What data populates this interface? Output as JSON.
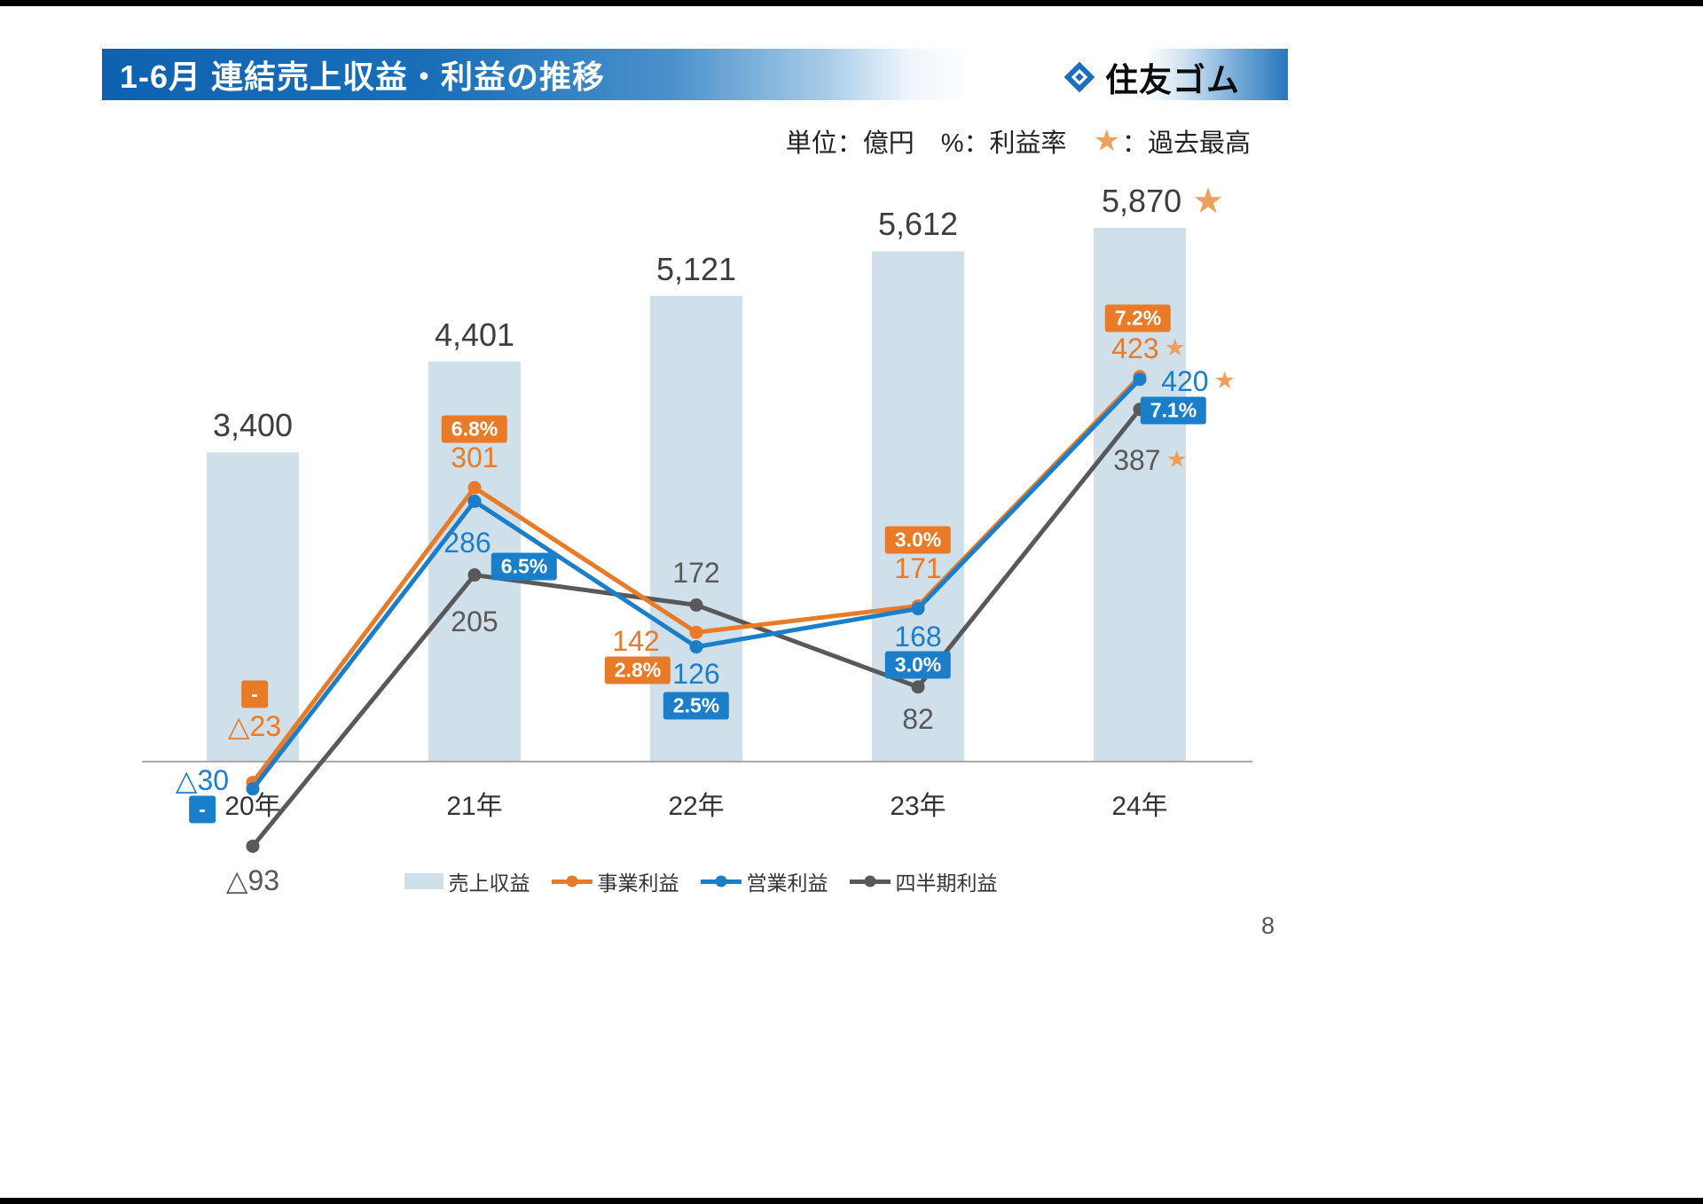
{
  "page": {
    "number": "8"
  },
  "header": {
    "title": "1-6月 連結売上収益・利益の推移",
    "logo_text": "住友ゴム"
  },
  "notes": {
    "unit": "単位：億円",
    "percent": "%：利益率",
    "star_icon": "★",
    "star_label": "：過去最高"
  },
  "colors": {
    "bar": "#cfe0ea",
    "orange": "#E87A28",
    "blue": "#1B7EC9",
    "gray": "#595959",
    "star": "#EDA05C",
    "axis": "#aaaaaa"
  },
  "legend": [
    {
      "label": "売上収益",
      "type": "bar"
    },
    {
      "label": "事業利益",
      "type": "line",
      "color": "#E87A28"
    },
    {
      "label": "営業利益",
      "type": "line",
      "color": "#1B7EC9"
    },
    {
      "label": "四半期利益",
      "type": "line",
      "color": "#595959"
    }
  ],
  "chart_data": {
    "type": "bar+line",
    "title": "1-6月 連結売上収益・利益の推移",
    "unit": "億円",
    "categories": [
      "20年",
      "21年",
      "22年",
      "23年",
      "24年"
    ],
    "bar_series": {
      "name": "売上収益",
      "values": [
        3400,
        4401,
        5121,
        5612,
        5870
      ],
      "labels": [
        "3,400",
        "4,401",
        "5,121",
        "5,612",
        "5,870"
      ],
      "star": [
        false,
        false,
        false,
        false,
        true
      ]
    },
    "line_series": [
      {
        "name": "事業利益",
        "color": "#E87A28",
        "values": [
          -23,
          301,
          142,
          171,
          423
        ],
        "labels": [
          "△23",
          "301",
          "142",
          "171",
          "423"
        ],
        "pct": [
          "-",
          "6.8%",
          "2.8%",
          "3.0%",
          "7.2%"
        ],
        "star": [
          false,
          false,
          false,
          false,
          true
        ]
      },
      {
        "name": "営業利益",
        "color": "#1B7EC9",
        "values": [
          -30,
          286,
          126,
          168,
          420
        ],
        "labels": [
          "△30",
          "286",
          "126",
          "168",
          "420"
        ],
        "pct": [
          "-",
          "6.5%",
          "2.5%",
          "3.0%",
          "7.1%"
        ],
        "star": [
          false,
          false,
          false,
          false,
          true
        ]
      },
      {
        "name": "四半期利益",
        "color": "#595959",
        "values": [
          -93,
          205,
          172,
          82,
          387
        ],
        "labels": [
          "△93",
          "205",
          "172",
          "82",
          "387"
        ],
        "pct": null,
        "star": [
          false,
          false,
          false,
          false,
          true
        ]
      }
    ],
    "notes": {
      "unit": "単位：億円",
      "percent": "%：利益率",
      "star": "★：過去最高"
    }
  }
}
